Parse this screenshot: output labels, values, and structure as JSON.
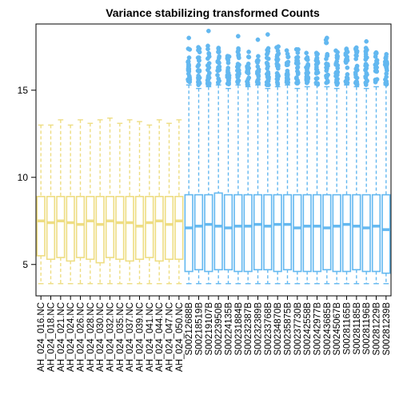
{
  "chart_data": {
    "type": "boxplot",
    "title": "Variance stabilizing transformed Counts",
    "xlabel": "",
    "ylabel": "",
    "ylim": [
      3.2,
      18.8
    ],
    "yticks": [
      5,
      10,
      15
    ],
    "grid": false,
    "legend": "none",
    "colors": {
      "group_a": "#EEDD82",
      "group_b": "#63B8F0",
      "axis": "#000000"
    },
    "categories": [
      "AH_024_016.NC",
      "AH_024_018.NC",
      "AH_024_021.NC",
      "AH_024_024.NC",
      "AH_024_026.NC",
      "AH_024_028.NC",
      "AH_024_030.NC",
      "AH_024_032.NC",
      "AH_024_035.NC",
      "AH_024_037.NC",
      "AH_024_039.NC",
      "AH_024_041.NC",
      "AH_024_044.NC",
      "AH_024_047.NC",
      "AH_024_050.NC",
      "S00212688B",
      "S00218519B",
      "S00219107B",
      "S00223950B",
      "S00224135B",
      "S00231884B",
      "S00232387B",
      "S00232389B",
      "S00233768B",
      "S00234870B",
      "S00235875B",
      "S00237730B",
      "S00242558B",
      "S00242977B",
      "S00243685B",
      "S00245067B",
      "S00281165B",
      "S00281185B",
      "S00281196B",
      "S00281229B",
      "S00281239B"
    ],
    "groups": [
      {
        "name": "AH",
        "color": "#EEDD82",
        "count": 15
      },
      {
        "name": "S",
        "color": "#63B8F0",
        "count": 21
      }
    ],
    "boxes": {
      "whisker_low": [
        3.9,
        3.9,
        3.9,
        3.9,
        3.9,
        3.9,
        3.9,
        3.9,
        3.9,
        3.9,
        3.9,
        3.9,
        3.9,
        3.9,
        3.9,
        3.9,
        3.9,
        3.9,
        3.9,
        3.9,
        3.9,
        3.9,
        3.9,
        3.9,
        3.9,
        3.9,
        3.9,
        3.9,
        3.9,
        3.9,
        3.9,
        3.9,
        3.9,
        3.9,
        3.9,
        3.9
      ],
      "q1": [
        5.5,
        5.3,
        5.4,
        5.2,
        5.4,
        5.3,
        5.1,
        5.4,
        5.3,
        5.2,
        5.3,
        5.4,
        5.2,
        5.3,
        5.3,
        4.6,
        4.7,
        4.6,
        4.7,
        4.7,
        4.6,
        4.6,
        4.7,
        4.7,
        4.6,
        4.7,
        4.6,
        4.6,
        4.6,
        4.7,
        4.6,
        4.6,
        4.7,
        4.6,
        4.6,
        4.5
      ],
      "median": [
        7.5,
        7.4,
        7.5,
        7.4,
        7.3,
        7.5,
        7.3,
        7.5,
        7.4,
        7.4,
        7.2,
        7.4,
        7.5,
        7.3,
        7.5,
        7.1,
        7.2,
        7.3,
        7.2,
        7.1,
        7.2,
        7.2,
        7.3,
        7.2,
        7.3,
        7.3,
        7.1,
        7.2,
        7.2,
        7.1,
        7.2,
        7.3,
        7.2,
        7.1,
        7.2,
        7.0
      ],
      "q3": [
        8.9,
        8.9,
        8.9,
        8.9,
        8.9,
        8.9,
        8.9,
        8.9,
        8.9,
        8.9,
        8.9,
        8.9,
        8.9,
        8.9,
        8.9,
        9.0,
        9.0,
        9.0,
        9.1,
        9.0,
        9.0,
        9.0,
        9.0,
        9.0,
        9.0,
        9.0,
        9.0,
        9.0,
        9.0,
        9.0,
        9.0,
        9.0,
        9.0,
        9.0,
        9.0,
        9.0
      ],
      "whisker_high": [
        13.0,
        13.0,
        13.3,
        13.0,
        13.3,
        13.1,
        13.3,
        13.4,
        13.1,
        13.3,
        13.2,
        13.0,
        13.3,
        13.1,
        13.3,
        15.3,
        15.1,
        15.2,
        15.3,
        15.1,
        15.3,
        15.2,
        15.3,
        15.1,
        15.2,
        15.3,
        15.1,
        15.2,
        15.3,
        15.2,
        15.1,
        15.3,
        15.2,
        15.1,
        15.2,
        15.3
      ],
      "outlier_range": [
        null,
        null,
        null,
        null,
        null,
        null,
        null,
        null,
        null,
        null,
        null,
        null,
        null,
        null,
        null,
        [
          15.4,
          17.5
        ],
        [
          15.3,
          17.6
        ],
        [
          15.3,
          18.1
        ],
        [
          15.4,
          17.5
        ],
        [
          15.3,
          17.2
        ],
        [
          15.4,
          17.5
        ],
        [
          15.3,
          17.3
        ],
        [
          15.4,
          17.2
        ],
        [
          15.3,
          17.5
        ],
        [
          15.3,
          17.6
        ],
        [
          15.4,
          17.3
        ],
        [
          15.3,
          17.4
        ],
        [
          15.4,
          17.2
        ],
        [
          15.3,
          17.2
        ],
        [
          15.4,
          18.0
        ],
        [
          15.3,
          17.3
        ],
        [
          15.4,
          17.4
        ],
        [
          15.3,
          17.5
        ],
        [
          15.3,
          17.5
        ],
        [
          15.4,
          17.2
        ],
        [
          15.3,
          17.1
        ]
      ],
      "tall_outliers": [
        null,
        null,
        null,
        null,
        null,
        null,
        null,
        null,
        null,
        null,
        null,
        null,
        null,
        null,
        null,
        18.0,
        null,
        18.4,
        null,
        null,
        18.1,
        null,
        17.9,
        18.2,
        null,
        null,
        null,
        null,
        null,
        18.0,
        null,
        null,
        null,
        17.8,
        null,
        null
      ]
    }
  }
}
